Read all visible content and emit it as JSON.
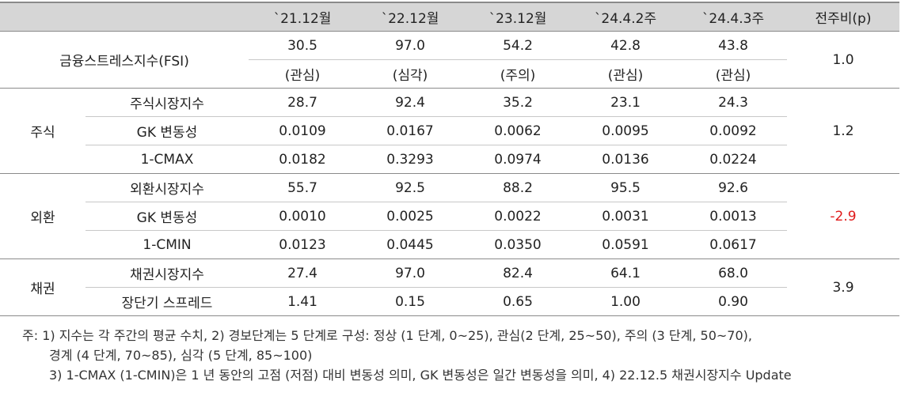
{
  "header": {
    "blank1": "",
    "blank2": "",
    "cols": [
      "`21.12월",
      "`22.12월",
      "`23.12월",
      "`24.4.2주",
      "`24.4.3주"
    ],
    "change": "전주비(p)"
  },
  "fsi": {
    "label": "금융스트레스지수(FSI)",
    "values": [
      "30.5",
      "97.0",
      "54.2",
      "42.8",
      "43.8"
    ],
    "stages": [
      "(관심)",
      "(심각)",
      "(주의)",
      "(관심)",
      "(관심)"
    ],
    "change": "1.0"
  },
  "groups": [
    {
      "label": "주식",
      "change": "1.2",
      "rows": [
        {
          "label": "주식시장지수",
          "values": [
            "28.7",
            "92.4",
            "35.2",
            "23.1",
            "24.3"
          ]
        },
        {
          "label": "GK 변동성",
          "values": [
            "0.0109",
            "0.0167",
            "0.0062",
            "0.0095",
            "0.0092"
          ]
        },
        {
          "label": "1-CMAX",
          "values": [
            "0.0182",
            "0.3293",
            "0.0974",
            "0.0136",
            "0.0224"
          ]
        }
      ]
    },
    {
      "label": "외환",
      "change": "-2.9",
      "rows": [
        {
          "label": "외환시장지수",
          "values": [
            "55.7",
            "92.5",
            "88.2",
            "95.5",
            "92.6"
          ]
        },
        {
          "label": "GK 변동성",
          "values": [
            "0.0010",
            "0.0025",
            "0.0022",
            "0.0031",
            "0.0013"
          ]
        },
        {
          "label": "1-CMIN",
          "values": [
            "0.0123",
            "0.0445",
            "0.0350",
            "0.0591",
            "0.0617"
          ]
        }
      ]
    },
    {
      "label": "채권",
      "change": "3.9",
      "rows": [
        {
          "label": "채권시장지수",
          "values": [
            "27.4",
            "97.0",
            "82.4",
            "64.1",
            "68.0"
          ]
        },
        {
          "label": "장단기 스프레드",
          "values": [
            "1.41",
            "0.15",
            "0.65",
            "1.00",
            "0.90"
          ]
        }
      ]
    }
  ],
  "notes": {
    "line1": "주: 1) 지수는 각 주간의 평균 수치, 2) 경보단계는 5 단계로 구성: 정상 (1 단계, 0~25), 관심(2 단계, 25~50), 주의 (3 단계, 50~70),",
    "line2": "경계 (4 단계, 70~85), 심각 (5 단계, 85~100)",
    "line3": "3) 1-CMAX (1-CMIN)은 1 년 동안의 고점 (저점) 대비 변동성 의미, GK 변동성은 일간 변동성을 의미, 4) 22.12.5 채권시장지수 Update"
  },
  "colors": {
    "header_bg": "#d6d6d6",
    "negative": "#e01a1a",
    "rule": "#8a8a8a"
  }
}
